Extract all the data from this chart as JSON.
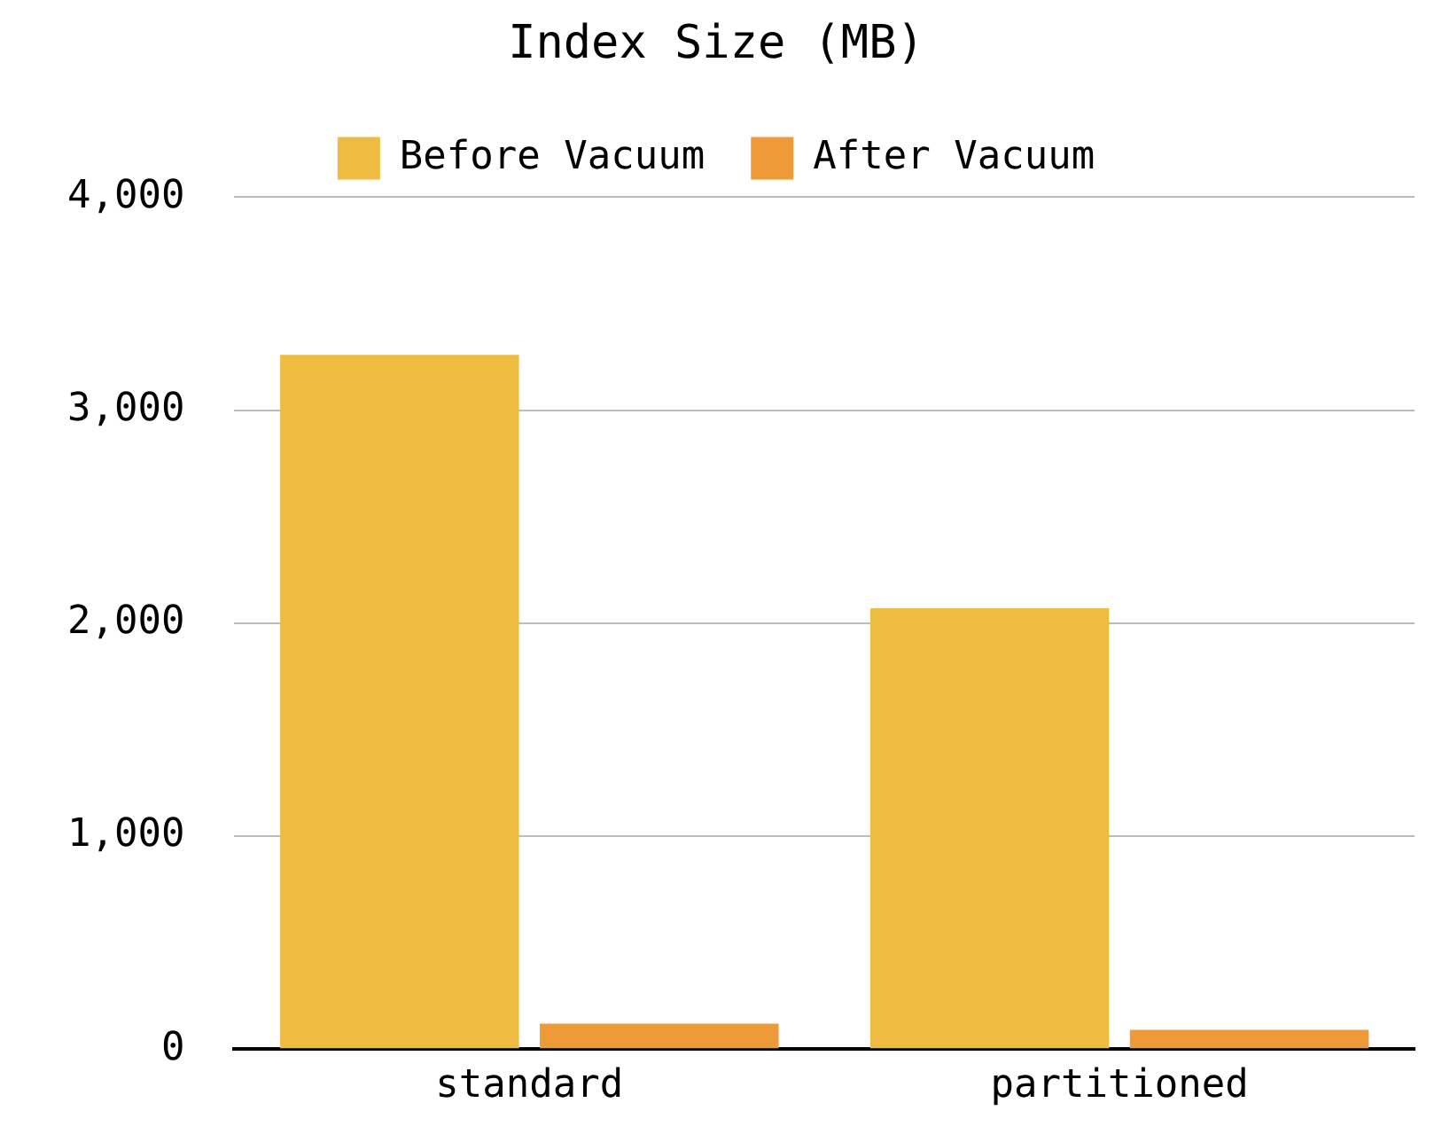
{
  "chart_data": {
    "type": "bar",
    "title": "Index Size (MB)",
    "categories": [
      "standard",
      "partitioned"
    ],
    "series": [
      {
        "name": "Before Vacuum",
        "color": "#eebc40",
        "values": [
          3260,
          2070
        ]
      },
      {
        "name": "After Vacuum",
        "color": "#ef9a38",
        "values": [
          120,
          90
        ]
      }
    ],
    "ylim": [
      0,
      4000
    ],
    "yticks": [
      {
        "value": 0,
        "label": "0"
      },
      {
        "value": 1000,
        "label": "1,000"
      },
      {
        "value": 2000,
        "label": "2,000"
      },
      {
        "value": 3000,
        "label": "3,000"
      },
      {
        "value": 4000,
        "label": "4,000"
      }
    ],
    "grid": "y",
    "legend": "top"
  }
}
